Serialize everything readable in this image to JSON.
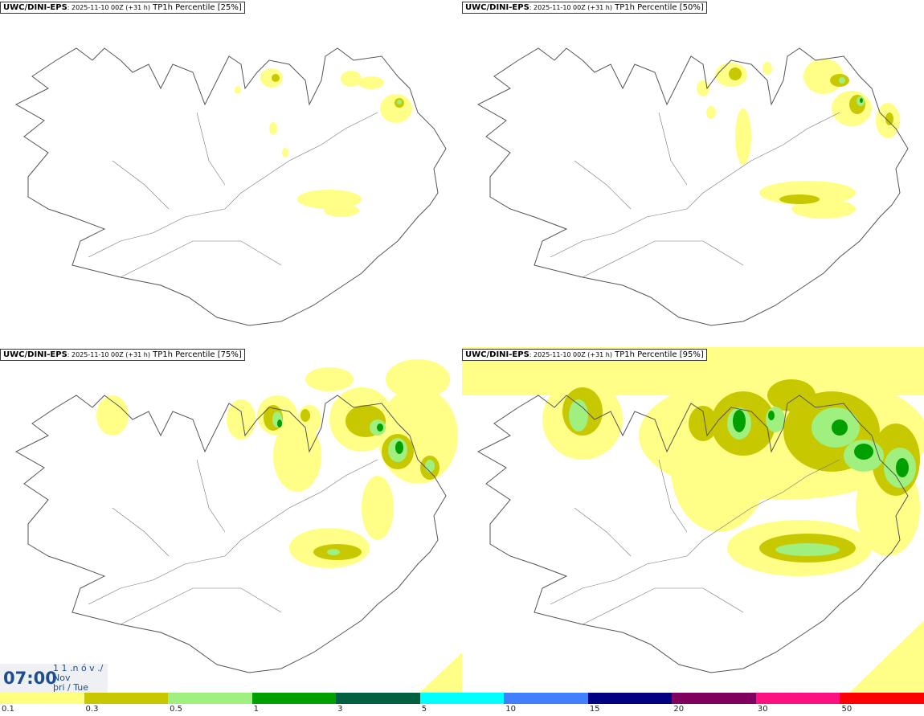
{
  "panels": [
    {
      "model": "UWC/DINI-EPS",
      "run": ": 2025-11-10 00Z (+31 h)",
      "field": " TP1h Percentile [25%]"
    },
    {
      "model": "UWC/DINI-EPS",
      "run": ": 2025-11-10 00Z (+31 h)",
      "field": " TP1h Percentile [50%]"
    },
    {
      "model": "UWC/DINI-EPS",
      "run": ": 2025-11-10 00Z (+31 h)",
      "field": " TP1h Percentile [75%]"
    },
    {
      "model": "UWC/DINI-EPS",
      "run": ": 2025-11-10 00Z (+31 h)",
      "field": " TP1h Percentile [95%]"
    }
  ],
  "valid_time": {
    "time": "07:00",
    "date_line1": "1 1 .n ó v ./",
    "date_line2": "Nov",
    "date_line3": "þri / Tue"
  },
  "legend": {
    "colors": [
      "#ffff80",
      "#c8c800",
      "#a0f080",
      "#00a000",
      "#006040",
      "#00ffff",
      "#4080ff",
      "#000080",
      "#800060",
      "#ff1080",
      "#ff0000"
    ],
    "labels": [
      "0.1",
      "0.3",
      "0.5",
      "1",
      "3",
      "5",
      "10",
      "15",
      "20",
      "30",
      "50"
    ]
  }
}
